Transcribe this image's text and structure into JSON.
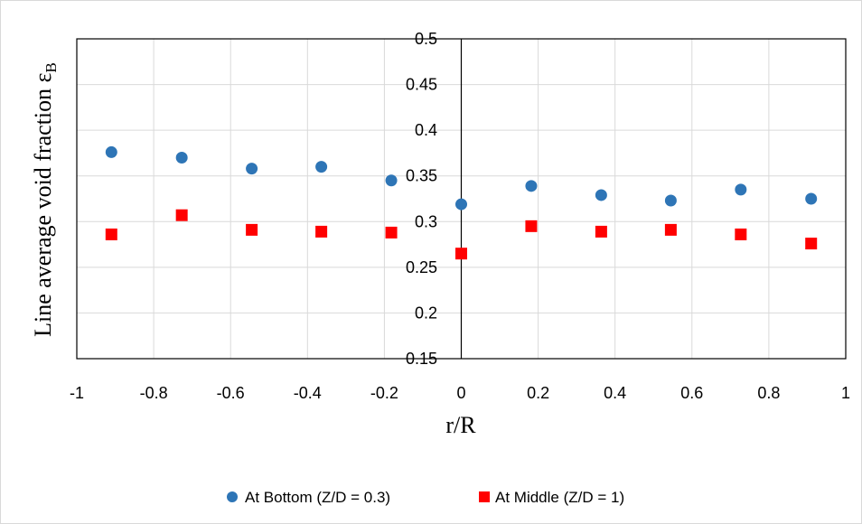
{
  "chart_data": {
    "type": "scatter",
    "title": "",
    "xlabel": "r/R",
    "ylabel": "Line average void fraction ε",
    "ylabel_sub": "B",
    "xlim": [
      -1,
      1
    ],
    "ylim": [
      0.15,
      0.5
    ],
    "x_ticks": [
      -1,
      -0.8,
      -0.6,
      -0.4,
      -0.2,
      0,
      0.2,
      0.4,
      0.6,
      0.8,
      1
    ],
    "y_ticks": [
      0.15,
      0.2,
      0.25,
      0.3,
      0.35,
      0.4,
      0.45,
      0.5
    ],
    "x_tick_labels": [
      "-1",
      "-0.8",
      "-0.6",
      "-0.4",
      "-0.2",
      "0",
      "0.2",
      "0.4",
      "0.6",
      "0.8",
      "1"
    ],
    "y_tick_labels": [
      "0.15",
      "0.2",
      "0.25",
      "0.3",
      "0.35",
      "0.4",
      "0.45",
      "0.5"
    ],
    "grid": true,
    "legend_position": "bottom",
    "series": [
      {
        "name": "At Bottom (Z/D = 0.3)",
        "marker": "circle",
        "color": "#2e75b6",
        "points": [
          {
            "x": -0.91,
            "y": 0.376
          },
          {
            "x": -0.727,
            "y": 0.37
          },
          {
            "x": -0.545,
            "y": 0.358
          },
          {
            "x": -0.364,
            "y": 0.36
          },
          {
            "x": -0.182,
            "y": 0.345
          },
          {
            "x": 0,
            "y": 0.319
          },
          {
            "x": 0.182,
            "y": 0.339
          },
          {
            "x": 0.364,
            "y": 0.329
          },
          {
            "x": 0.545,
            "y": 0.323
          },
          {
            "x": 0.727,
            "y": 0.335
          },
          {
            "x": 0.91,
            "y": 0.325
          }
        ]
      },
      {
        "name": "At Middle (Z/D = 1)",
        "marker": "square",
        "color": "#ff0000",
        "points": [
          {
            "x": -0.91,
            "y": 0.286
          },
          {
            "x": -0.727,
            "y": 0.307
          },
          {
            "x": -0.545,
            "y": 0.291
          },
          {
            "x": -0.364,
            "y": 0.289
          },
          {
            "x": -0.182,
            "y": 0.288
          },
          {
            "x": 0,
            "y": 0.265
          },
          {
            "x": 0.182,
            "y": 0.295
          },
          {
            "x": 0.364,
            "y": 0.289
          },
          {
            "x": 0.545,
            "y": 0.291
          },
          {
            "x": 0.727,
            "y": 0.286
          },
          {
            "x": 0.91,
            "y": 0.276
          }
        ]
      }
    ]
  }
}
